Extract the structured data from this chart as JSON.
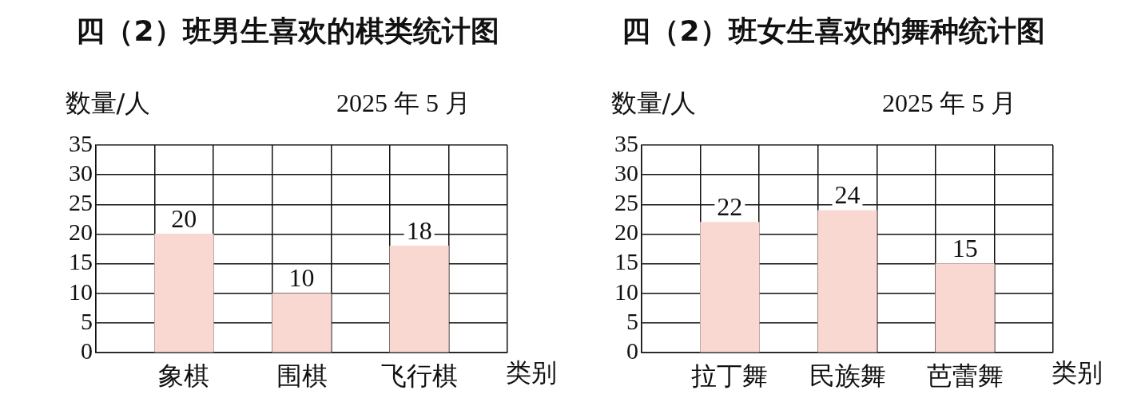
{
  "chart_data": [
    {
      "type": "bar",
      "title": "四（2）班男生喜欢的棋类统计图",
      "subtitle": "2025 年 5 月",
      "ylabel": "数量/人",
      "xlabel": "类别",
      "categories": [
        null,
        "象棋",
        null,
        "围棋",
        null,
        "飞行棋",
        null
      ],
      "values": [
        null,
        20,
        null,
        10,
        null,
        18,
        null
      ],
      "color": "#f9d8d2",
      "ylim": [
        0,
        35
      ],
      "yticks": [
        0,
        5,
        10,
        15,
        20,
        25,
        30,
        35
      ],
      "grid": true,
      "data_labels": true
    },
    {
      "type": "bar",
      "title": "四（2）班女生喜欢的舞种统计图",
      "subtitle": "2025 年 5 月",
      "ylabel": "数量/人",
      "xlabel": "类别",
      "categories": [
        null,
        "拉丁舞",
        null,
        "民族舞",
        null,
        "芭蕾舞",
        null
      ],
      "values": [
        null,
        22,
        null,
        24,
        null,
        15,
        null
      ],
      "color": "#f9d8d2",
      "ylim": [
        0,
        35
      ],
      "yticks": [
        0,
        5,
        10,
        15,
        20,
        25,
        30,
        35
      ],
      "grid": true,
      "data_labels": true
    }
  ]
}
